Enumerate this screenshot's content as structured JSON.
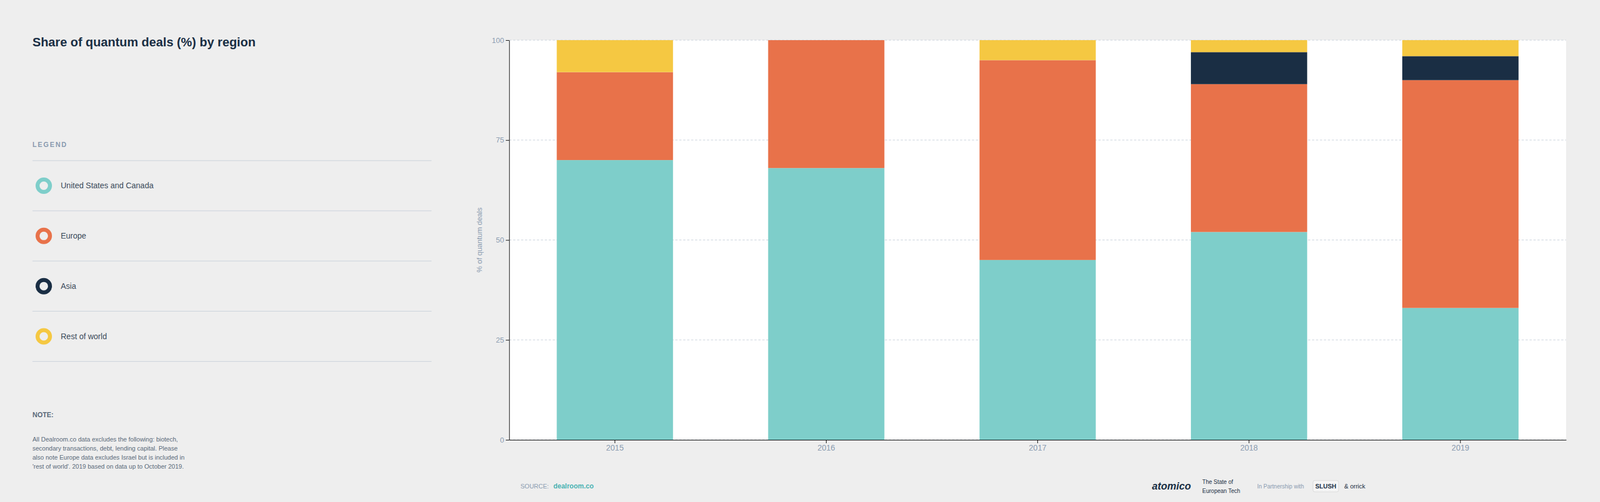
{
  "chart_data": {
    "type": "bar",
    "stacked": true,
    "title": "Share of quantum deals (%) by region",
    "y_label": "% of quantum deals",
    "categories": [
      "2015",
      "2016",
      "2017",
      "2018",
      "2019"
    ],
    "series": [
      {
        "name": "United States and Canada",
        "color": "#7ececa",
        "values": [
          70,
          68,
          45,
          52,
          33
        ]
      },
      {
        "name": "Europe",
        "color": "#e8724a",
        "values": [
          22,
          32,
          50,
          37,
          57
        ]
      },
      {
        "name": "Asia",
        "color": "#1a2e44",
        "values": [
          0,
          0,
          0,
          8,
          6
        ]
      },
      {
        "name": "Rest of world",
        "color": "#f5c842",
        "values": [
          8,
          0,
          5,
          3,
          4
        ]
      }
    ],
    "ylim": [
      0,
      100
    ],
    "yticks": [
      0,
      25,
      50,
      75,
      100
    ],
    "grid": true,
    "legend": "left",
    "annotations": [
      "LEGEND",
      "NOTE:",
      "All Dealroom.co data excludes the following: biotech,\nsecondary transactions, debt, lending capital. Please\nalso note Europe data excludes Israel but is included in\n'rest of world'. 2019 based on data up to October 2019.",
      "SOURCE:",
      "dealroom.co",
      "atomico",
      "The State of",
      "European Tech",
      "In Partnership with",
      "SLUSH",
      "& orrick"
    ]
  }
}
